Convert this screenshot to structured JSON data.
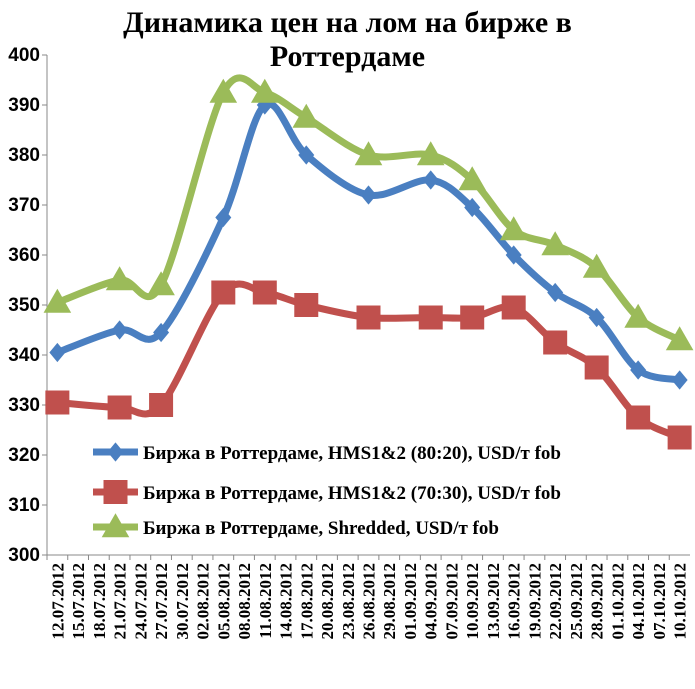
{
  "chart_data": {
    "type": "line",
    "title": "Динамика цен на лом на бирже в Роттердаме",
    "title_lines": [
      "Динамика цен на лом на бирже в",
      "Роттердаме"
    ],
    "xlabel": "",
    "ylabel": "",
    "ylim": [
      300,
      400
    ],
    "yticks": [
      300,
      310,
      320,
      330,
      340,
      350,
      360,
      370,
      380,
      390,
      400
    ],
    "grid": false,
    "legend_position": "bottom-right",
    "categories": [
      "12.07.2012",
      "15.07.2012",
      "18.07.2012",
      "21.07.2012",
      "24.07.2012",
      "27.07.2012",
      "30.07.2012",
      "02.08.2012",
      "05.08.2012",
      "08.08.2012",
      "11.08.2012",
      "14.08.2012",
      "17.08.2012",
      "20.08.2012",
      "23.08.2012",
      "26.08.2012",
      "29.08.2012",
      "01.09.2012",
      "04.09.2012",
      "07.09.2012",
      "10.09.2012",
      "13.09.2012",
      "16.09.2012",
      "19.09.2012",
      "22.09.2012",
      "25.09.2012",
      "28.09.2012",
      "01.10.2012",
      "04.10.2012",
      "07.10.2012",
      "10.10.2012"
    ],
    "series": [
      {
        "name": "Биржа в Роттердаме, HMS1&2 (80:20), USD/т fob",
        "color": "#4a7fc1",
        "marker": "diamond",
        "points": [
          [
            "12.07.2012",
            340.5
          ],
          [
            "21.07.2012",
            345
          ],
          [
            "27.07.2012",
            344.5
          ],
          [
            "05.08.2012",
            367.5
          ],
          [
            "11.08.2012",
            390
          ],
          [
            "17.08.2012",
            380
          ],
          [
            "26.08.2012",
            372
          ],
          [
            "04.09.2012",
            375
          ],
          [
            "10.09.2012",
            369.5
          ],
          [
            "16.09.2012",
            360
          ],
          [
            "22.09.2012",
            352.5
          ],
          [
            "28.09.2012",
            347.5
          ],
          [
            "04.10.2012",
            337
          ],
          [
            "10.10.2012",
            335
          ]
        ]
      },
      {
        "name": "Биржа в Роттердаме, HMS1&2 (70:30), USD/т fob",
        "color": "#c0504d",
        "marker": "square",
        "points": [
          [
            "12.07.2012",
            330.5
          ],
          [
            "21.07.2012",
            329.5
          ],
          [
            "27.07.2012",
            330
          ],
          [
            "05.08.2012",
            352.5
          ],
          [
            "11.08.2012",
            352.5
          ],
          [
            "17.08.2012",
            350
          ],
          [
            "26.08.2012",
            347.5
          ],
          [
            "04.09.2012",
            347.5
          ],
          [
            "10.09.2012",
            347.5
          ],
          [
            "16.09.2012",
            349.5
          ],
          [
            "22.09.2012",
            342.5
          ],
          [
            "28.09.2012",
            337.5
          ],
          [
            "04.10.2012",
            327.5
          ],
          [
            "10.10.2012",
            323.5
          ]
        ]
      },
      {
        "name": "Биржа в Роттердаме, Shredded, USD/т fob",
        "color": "#9bbb59",
        "marker": "triangle",
        "points": [
          [
            "12.07.2012",
            350.5
          ],
          [
            "21.07.2012",
            355
          ],
          [
            "27.07.2012",
            354
          ],
          [
            "05.08.2012",
            392.5
          ],
          [
            "11.08.2012",
            392.5
          ],
          [
            "17.08.2012",
            387.5
          ],
          [
            "26.08.2012",
            380
          ],
          [
            "04.09.2012",
            380
          ],
          [
            "10.09.2012",
            375
          ],
          [
            "16.09.2012",
            365
          ],
          [
            "22.09.2012",
            362
          ],
          [
            "28.09.2012",
            357.5
          ],
          [
            "04.10.2012",
            347.5
          ],
          [
            "10.10.2012",
            343
          ]
        ]
      }
    ]
  }
}
